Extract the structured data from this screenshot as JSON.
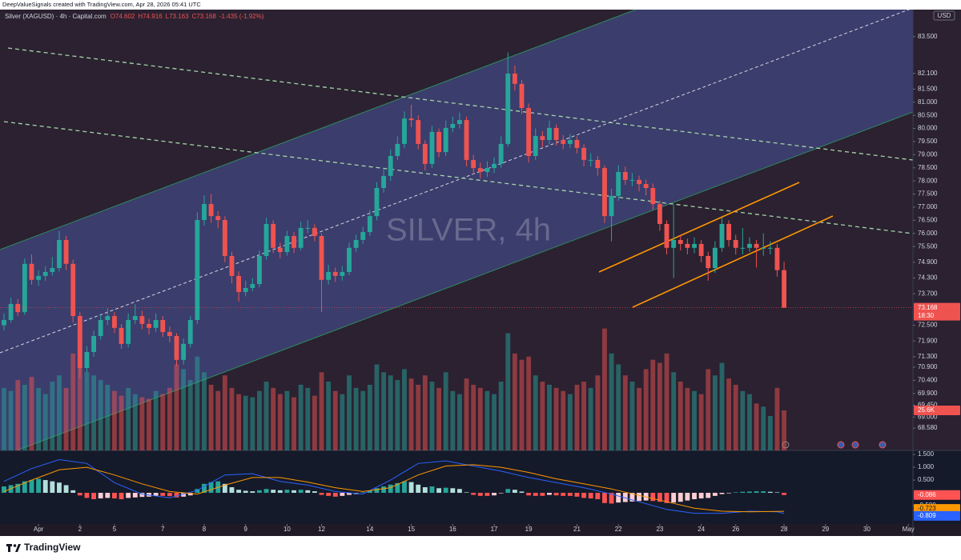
{
  "header": {
    "attribution": "DeepValueSignals created with TradingView.com, Apr 28, 2026 05:41 UTC"
  },
  "footer": {
    "brand": "TradingView"
  },
  "chart_data": [
    {
      "type": "candlestick",
      "title": "Silver (XAGUSD) · 4h · Capital.com",
      "legend_values": [
        "O74.602",
        "H74.916",
        "L73.163",
        "C73.168",
        "-1.435 (-1.92%)"
      ],
      "watermark": "SILVER, 4h",
      "currency": "USD",
      "up_color": "#26a69a",
      "down_color": "#ef5350",
      "open": [
        72.5,
        72.7,
        73.31,
        73.0,
        74.84,
        74.23,
        74.38,
        74.53,
        74.68,
        75.75,
        74.84,
        72.85,
        70.87,
        71.48,
        72.09,
        72.7,
        72.85,
        72.4,
        71.79,
        72.7,
        72.85,
        72.55,
        72.4,
        72.7,
        72.24,
        72.09,
        71.18,
        71.79,
        72.7,
        76.51,
        77.12,
        76.66,
        76.51,
        75.14,
        74.38,
        73.77,
        73.92,
        74.07,
        75.14,
        76.36,
        75.45,
        75.29,
        75.9,
        75.45,
        76.21,
        76.21,
        75.9,
        74.23,
        74.53,
        74.38,
        74.53,
        75.45,
        75.75,
        76.05,
        76.66,
        77.73,
        78.19,
        78.95,
        79.41,
        80.38,
        80.32,
        79.41,
        78.65,
        79.87,
        79.1,
        80.02,
        80.17,
        80.32,
        78.8,
        78.49,
        78.34,
        78.49,
        78.65,
        79.41,
        82.09,
        81.7,
        80.78,
        78.95,
        79.71,
        79.56,
        80.02,
        79.56,
        79.41,
        79.56,
        79.26,
        78.8,
        78.8,
        78.49,
        76.66,
        77.43,
        78.34,
        78.04,
        78.04,
        77.88,
        77.73,
        77.12,
        76.36,
        75.45,
        75.75,
        75.6,
        75.45,
        75.6,
        75.14,
        74.68,
        75.45,
        76.36,
        75.75,
        75.45,
        75.45,
        75.6,
        75.45,
        75.45,
        75.45,
        74.6
      ],
      "high": [
        72.95,
        73.55,
        73.5,
        75.05,
        75.2,
        74.6,
        74.75,
        75.1,
        76.1,
        75.9,
        75.0,
        73.0,
        71.7,
        72.3,
        72.9,
        73.15,
        73.0,
        72.55,
        72.95,
        73.3,
        73.05,
        72.75,
        72.95,
        72.85,
        72.45,
        72.2,
        72.0,
        72.85,
        76.8,
        77.45,
        77.5,
        76.85,
        76.65,
        75.3,
        74.55,
        74.2,
        74.3,
        75.35,
        76.6,
        76.5,
        75.65,
        76.1,
        76.05,
        76.45,
        76.5,
        76.35,
        76.0,
        74.8,
        74.7,
        74.75,
        75.65,
        75.95,
        76.25,
        76.9,
        77.95,
        78.45,
        79.2,
        79.7,
        80.65,
        80.9,
        80.5,
        79.55,
        80.1,
        80.0,
        80.3,
        80.45,
        80.6,
        80.45,
        79.0,
        78.7,
        78.75,
        78.9,
        79.7,
        82.9,
        82.4,
        81.85,
        80.95,
        80.0,
        79.9,
        80.3,
        80.15,
        79.75,
        79.8,
        79.7,
        79.4,
        79.05,
        78.95,
        78.6,
        77.7,
        78.6,
        78.55,
        78.3,
        78.2,
        78.05,
        77.9,
        77.25,
        76.5,
        77.1,
        75.95,
        75.8,
        75.85,
        75.75,
        75.3,
        75.7,
        76.6,
        76.5,
        75.95,
        76.2,
        75.85,
        75.75,
        76.0,
        75.7,
        75.6,
        74.92
      ],
      "low": [
        72.3,
        72.6,
        72.85,
        72.9,
        74.05,
        74.0,
        74.2,
        74.4,
        74.55,
        74.6,
        72.6,
        70.5,
        70.7,
        71.3,
        71.95,
        72.5,
        72.2,
        71.6,
        71.65,
        72.55,
        72.35,
        72.15,
        72.25,
        72.05,
        71.85,
        70.95,
        71.0,
        71.65,
        72.55,
        76.3,
        76.4,
        76.2,
        74.9,
        74.1,
        73.4,
        73.6,
        73.8,
        73.95,
        75.0,
        75.25,
        75.05,
        75.15,
        75.25,
        75.35,
        76.0,
        75.7,
        73.0,
        74.05,
        74.15,
        74.2,
        74.4,
        75.3,
        75.6,
        75.9,
        76.5,
        77.55,
        78.0,
        78.8,
        79.25,
        80.05,
        79.2,
        78.4,
        78.5,
        78.9,
        78.95,
        79.85,
        80.0,
        78.55,
        78.25,
        78.1,
        78.15,
        78.3,
        78.5,
        79.3,
        81.45,
        80.55,
        78.7,
        78.8,
        79.3,
        79.4,
        79.35,
        79.2,
        79.25,
        79.05,
        78.55,
        78.55,
        78.2,
        76.4,
        75.7,
        77.25,
        77.85,
        77.8,
        77.6,
        77.45,
        76.9,
        76.1,
        75.2,
        74.3,
        75.35,
        75.2,
        75.25,
        74.9,
        74.2,
        74.5,
        75.3,
        75.5,
        75.2,
        75.2,
        75.3,
        74.7,
        75.15,
        75.2,
        74.35,
        73.16
      ],
      "close": [
        72.7,
        73.31,
        73.0,
        74.84,
        74.23,
        74.38,
        74.53,
        74.68,
        75.75,
        74.84,
        72.85,
        70.87,
        71.48,
        72.09,
        72.7,
        72.85,
        72.4,
        71.79,
        72.7,
        72.85,
        72.55,
        72.4,
        72.7,
        72.24,
        72.09,
        71.18,
        71.79,
        72.7,
        76.51,
        77.12,
        76.66,
        76.51,
        75.14,
        74.38,
        73.77,
        73.92,
        74.07,
        75.14,
        76.36,
        75.45,
        75.29,
        75.9,
        75.45,
        76.21,
        76.21,
        75.9,
        74.23,
        74.53,
        74.38,
        74.53,
        75.45,
        75.75,
        76.05,
        76.66,
        77.73,
        78.19,
        78.95,
        79.41,
        80.38,
        80.32,
        79.41,
        78.65,
        79.87,
        79.1,
        80.02,
        80.17,
        80.32,
        78.8,
        78.49,
        78.34,
        78.49,
        78.65,
        79.41,
        82.09,
        81.7,
        80.78,
        78.95,
        79.71,
        79.56,
        80.02,
        79.56,
        79.41,
        79.56,
        79.26,
        78.8,
        78.8,
        78.49,
        76.66,
        77.43,
        78.34,
        78.04,
        78.04,
        77.88,
        77.73,
        77.12,
        76.36,
        75.45,
        75.75,
        75.6,
        75.45,
        75.6,
        75.14,
        74.68,
        75.45,
        76.36,
        75.75,
        75.45,
        75.45,
        75.6,
        75.45,
        75.45,
        75.45,
        74.6,
        73.17
      ],
      "last_price": 73.168,
      "countdown": "18:30",
      "ylim": [
        67.73,
        84.53
      ],
      "yticks": [
        {
          "value": 83.5,
          "label": "83.500"
        },
        {
          "value": 82.1,
          "label": "82.100"
        },
        {
          "value": 81.5,
          "label": "81.500"
        },
        {
          "value": 81.0,
          "label": "81.000"
        },
        {
          "value": 80.5,
          "label": "80.500"
        },
        {
          "value": 80.0,
          "label": "80.000"
        },
        {
          "value": 79.5,
          "label": "79.500"
        },
        {
          "value": 79.0,
          "label": "79.000"
        },
        {
          "value": 78.5,
          "label": "78.500"
        },
        {
          "value": 78.0,
          "label": "78.000"
        },
        {
          "value": 77.5,
          "label": "77.500"
        },
        {
          "value": 77.0,
          "label": "77.000"
        },
        {
          "value": 76.5,
          "label": "76.500"
        },
        {
          "value": 76.0,
          "label": "76.000"
        },
        {
          "value": 75.5,
          "label": "75.500"
        },
        {
          "value": 74.9,
          "label": "74.900"
        },
        {
          "value": 74.3,
          "label": "74.300"
        },
        {
          "value": 73.7,
          "label": "73.700"
        },
        {
          "value": 72.5,
          "label": "72.500"
        },
        {
          "value": 71.9,
          "label": "71.900"
        },
        {
          "value": 71.3,
          "label": "71.300"
        },
        {
          "value": 70.9,
          "label": "70.900"
        },
        {
          "value": 70.4,
          "label": "70.400"
        },
        {
          "value": 69.9,
          "label": "69.900"
        },
        {
          "value": 69.45,
          "label": "69.450"
        },
        {
          "value": 69.0,
          "label": "69.000"
        },
        {
          "value": 68.58,
          "label": "68.580"
        }
      ],
      "xlim": [
        -0.58,
        131.67
      ],
      "xticks": [
        {
          "value": 5,
          "label": "Apr"
        },
        {
          "value": 11,
          "label": "2"
        },
        {
          "value": 16,
          "label": "5"
        },
        {
          "value": 23,
          "label": "7"
        },
        {
          "value": 29,
          "label": "8"
        },
        {
          "value": 35,
          "label": "9"
        },
        {
          "value": 41,
          "label": "10"
        },
        {
          "value": 46,
          "label": "12"
        },
        {
          "value": 53,
          "label": "14"
        },
        {
          "value": 59,
          "label": "15"
        },
        {
          "value": 65,
          "label": "16"
        },
        {
          "value": 71,
          "label": "17"
        },
        {
          "value": 76,
          "label": "19"
        },
        {
          "value": 83,
          "label": "21"
        },
        {
          "value": 89,
          "label": "22"
        },
        {
          "value": 95,
          "label": "23"
        },
        {
          "value": 101,
          "label": "24"
        },
        {
          "value": 106,
          "label": "26"
        },
        {
          "value": 113,
          "label": "28"
        },
        {
          "value": 119,
          "label": "29"
        },
        {
          "value": 125,
          "label": "30"
        },
        {
          "value": 131,
          "label": "May"
        }
      ]
    },
    {
      "type": "volume",
      "up_color": "rgba(38,166,154,0.5)",
      "down_color": "rgba(239,83,80,0.5)",
      "values": [
        40000,
        38000,
        45000,
        42000,
        47000,
        40000,
        36000,
        44000,
        48000,
        40000,
        62000,
        55000,
        50000,
        48000,
        45000,
        42000,
        38000,
        35000,
        40000,
        36000,
        34000,
        33000,
        38000,
        36000,
        40000,
        55000,
        52000,
        45000,
        60000,
        50000,
        42000,
        38000,
        48000,
        40000,
        36000,
        35000,
        34000,
        38000,
        44000,
        40000,
        36000,
        38000,
        34000,
        42000,
        40000,
        35000,
        50000,
        44000,
        38000,
        36000,
        48000,
        40000,
        38000,
        42000,
        55000,
        50000,
        48000,
        45000,
        52000,
        46000,
        42000,
        48000,
        44000,
        40000,
        50000,
        38000,
        36000,
        46000,
        42000,
        40000,
        38000,
        36000,
        44000,
        75000,
        62000,
        58000,
        60000,
        48000,
        44000,
        42000,
        40000,
        38000,
        36000,
        42000,
        44000,
        40000,
        48000,
        78000,
        62000,
        55000,
        48000,
        44000,
        40000,
        52000,
        58000,
        56000,
        62000,
        50000,
        44000,
        40000,
        38000,
        36000,
        52000,
        48000,
        56000,
        46000,
        42000,
        38000,
        36000,
        30000,
        28000,
        22000,
        40000,
        25600
      ],
      "last_label": "25.6K",
      "ylim": [
        0,
        282000
      ]
    },
    {
      "type": "macd",
      "histogram": [
        0.25,
        0.3,
        0.35,
        0.45,
        0.5,
        0.55,
        0.5,
        0.45,
        0.4,
        0.3,
        0.1,
        -0.1,
        -0.2,
        -0.25,
        -0.22,
        -0.2,
        -0.22,
        -0.25,
        -0.2,
        -0.18,
        -0.16,
        -0.15,
        -0.12,
        -0.12,
        -0.13,
        -0.18,
        -0.15,
        -0.1,
        0.15,
        0.35,
        0.42,
        0.45,
        0.35,
        0.22,
        0.12,
        0.08,
        0.06,
        0.1,
        0.15,
        0.12,
        0.1,
        0.12,
        0.1,
        0.12,
        0.1,
        0.06,
        -0.08,
        -0.12,
        -0.15,
        -0.12,
        -0.08,
        -0.05,
        0.02,
        0.08,
        0.18,
        0.25,
        0.32,
        0.38,
        0.45,
        0.42,
        0.32,
        0.22,
        0.25,
        0.18,
        0.2,
        0.18,
        0.15,
        0.02,
        -0.08,
        -0.12,
        -0.12,
        -0.1,
        -0.02,
        0.15,
        0.12,
        0.05,
        -0.1,
        -0.12,
        -0.12,
        -0.08,
        -0.1,
        -0.12,
        -0.12,
        -0.15,
        -0.2,
        -0.22,
        -0.25,
        -0.4,
        -0.42,
        -0.38,
        -0.36,
        -0.34,
        -0.32,
        -0.3,
        -0.32,
        -0.35,
        -0.4,
        -0.38,
        -0.35,
        -0.3,
        -0.25,
        -0.22,
        -0.2,
        -0.12,
        -0.05,
        -0.02,
        0.02,
        0.04,
        0.05,
        0.06,
        0.06,
        0.04,
        0.02,
        -0.086
      ],
      "histogram_colors": {
        "up_rising": "#26a69a",
        "up_falling": "#b2dfdb",
        "down_falling": "#ff5252",
        "down_rising": "#ffcdd2"
      },
      "series": [
        {
          "color": "#2962ff",
          "x": [
            0,
            4,
            8,
            12,
            16,
            20,
            24,
            28,
            32,
            36,
            40,
            44,
            48,
            52,
            56,
            60,
            64,
            68,
            72,
            76,
            80,
            84,
            88,
            92,
            96,
            100,
            104,
            108,
            112,
            113
          ],
          "values": [
            0.45,
            0.95,
            1.3,
            1.15,
            0.4,
            -0.05,
            -0.2,
            0.1,
            0.7,
            0.75,
            0.45,
            0.3,
            0.05,
            -0.05,
            0.5,
            1.15,
            1.25,
            1.05,
            0.85,
            0.6,
            0.4,
            0.2,
            -0.05,
            -0.35,
            -0.65,
            -0.8,
            -0.8,
            -0.72,
            -0.74,
            -0.809
          ]
        },
        {
          "color": "#ff9800",
          "x": [
            0,
            4,
            8,
            12,
            16,
            20,
            24,
            28,
            32,
            36,
            40,
            44,
            48,
            52,
            56,
            60,
            64,
            68,
            72,
            76,
            80,
            84,
            88,
            92,
            96,
            100,
            104,
            108,
            112,
            113
          ],
          "values": [
            0.05,
            0.5,
            0.9,
            1.0,
            0.7,
            0.35,
            0.05,
            -0.05,
            0.3,
            0.6,
            0.6,
            0.42,
            0.2,
            0.05,
            0.2,
            0.7,
            1.05,
            1.1,
            1.0,
            0.8,
            0.55,
            0.35,
            0.15,
            -0.1,
            -0.35,
            -0.6,
            -0.72,
            -0.74,
            -0.73,
            -0.723
          ]
        }
      ],
      "histogram_tag_color": "#ff5252",
      "ylim": [
        -1.22,
        1.66
      ],
      "yticks": [
        {
          "value": 1.5,
          "label": "1.500"
        },
        {
          "value": 1.0,
          "label": "1.000"
        },
        {
          "value": 0.5,
          "label": "0.500"
        },
        {
          "value": -0.5,
          "label": "-0.500"
        }
      ]
    }
  ]
}
